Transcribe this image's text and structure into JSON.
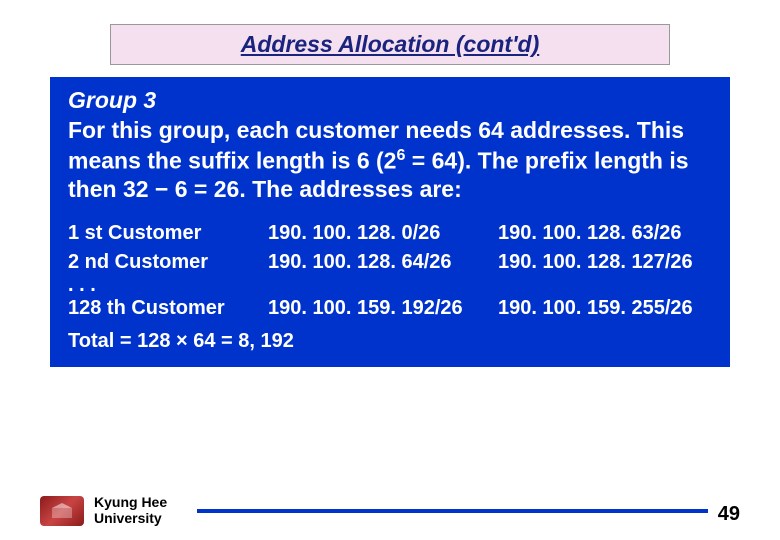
{
  "title": "Address Allocation (cont'd)",
  "group_heading": "Group 3",
  "body_text_html": "For this group, each customer needs 64 addresses. This means the suffix length is 6 (2<sup>6</sup> = 64). The prefix length is then 32 − 6 = 26. The addresses are:",
  "rows": [
    {
      "label": "1 st Customer",
      "start": "190. 100. 128. 0/26",
      "end": "190. 100. 128. 63/26"
    },
    {
      "label": "2 nd Customer",
      "start": "190. 100. 128. 64/26",
      "end": "190. 100. 128. 127/26"
    }
  ],
  "ellipsis": ". . .",
  "last_row": {
    "label": "128 th Customer",
    "start": "190. 100. 159. 192/26",
    "end": "190. 100. 159. 255/26"
  },
  "total": "Total = 128 × 64 = 8, 192",
  "footer": {
    "university_line1": "Kyung Hee",
    "university_line2": "University",
    "page": "49"
  },
  "colors": {
    "title_bg": "#f5e0ef",
    "title_text": "#1a237e",
    "content_bg": "#0033cc",
    "content_text": "#ffffff",
    "footer_line": "#0033cc"
  }
}
